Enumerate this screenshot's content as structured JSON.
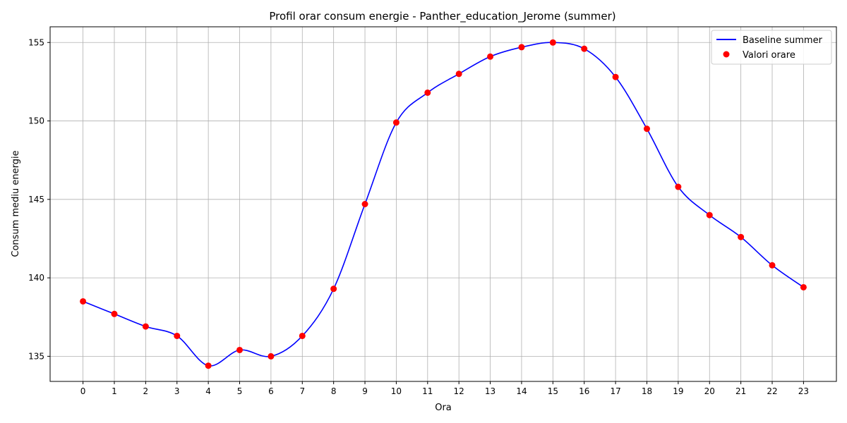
{
  "chart_data": {
    "type": "line",
    "title": "Profil orar consum energie - Panther_education_Jerome (summer)",
    "xlabel": "Ora",
    "ylabel": "Consum mediu energie",
    "x": [
      0,
      1,
      2,
      3,
      4,
      5,
      6,
      7,
      8,
      9,
      10,
      11,
      12,
      13,
      14,
      15,
      16,
      17,
      18,
      19,
      20,
      21,
      22,
      23
    ],
    "x_ticks": [
      "0",
      "1",
      "2",
      "3",
      "4",
      "5",
      "6",
      "7",
      "8",
      "9",
      "10",
      "11",
      "12",
      "13",
      "14",
      "15",
      "16",
      "17",
      "18",
      "19",
      "20",
      "21",
      "22",
      "23"
    ],
    "y_ticks": [
      "135",
      "140",
      "145",
      "150",
      "155"
    ],
    "y_tick_values": [
      135,
      140,
      145,
      150,
      155
    ],
    "xlim": [
      -1.05,
      24.05
    ],
    "ylim": [
      133.4,
      156.0
    ],
    "grid": true,
    "legend_position": "top-right",
    "series": [
      {
        "name": "Baseline summer",
        "kind": "smooth-line",
        "color": "#0000ff",
        "values": [
          138.5,
          137.7,
          136.9,
          136.3,
          134.4,
          135.4,
          135.0,
          136.3,
          139.3,
          144.7,
          149.9,
          151.8,
          153.0,
          154.1,
          154.7,
          155.0,
          154.6,
          152.8,
          149.5,
          145.8,
          144.0,
          142.6,
          140.8,
          139.4
        ]
      },
      {
        "name": "Valori orare",
        "kind": "scatter",
        "color": "#ff0000",
        "values": [
          138.5,
          137.7,
          136.9,
          136.3,
          134.4,
          135.4,
          135.0,
          136.3,
          139.3,
          144.7,
          149.9,
          151.8,
          153.0,
          154.1,
          154.7,
          155.0,
          154.6,
          152.8,
          149.5,
          145.8,
          144.0,
          142.6,
          140.8,
          139.4
        ]
      }
    ]
  }
}
